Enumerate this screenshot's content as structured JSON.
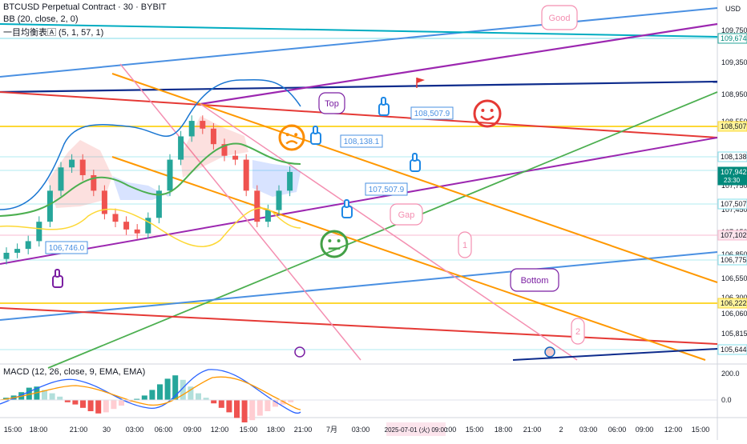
{
  "header": {
    "symbol": "BTCUSD Perpetual Contract · 30 · BYBIT",
    "bb": "BB (20, close, 2, 0)",
    "ichimoku": "一目均衡表🄰 (5, 1, 57, 1)",
    "macd": "MACD (12, 26, close, 9, EMA, EMA)",
    "currency": "USD"
  },
  "price_axis": {
    "ticks": [
      "109,750.0",
      "109,350.0",
      "108,950.0",
      "108,550.0",
      "107,750.0",
      "107,450.0",
      "107,150.0",
      "106,850.0",
      "106,550.0",
      "106,300.0",
      "106,060.0",
      "105,815.0",
      "105,575.0"
    ],
    "tags": [
      {
        "text": "109,674.0",
        "bg": "#ffffff",
        "fg": "#00897b",
        "border": "#26a69a"
      },
      {
        "text": "108,507.9",
        "bg": "#fff59d",
        "fg": "#131722",
        "border": "#fdd835"
      },
      {
        "text": "108,138.1",
        "bg": "#ffffff",
        "fg": "#131722",
        "border": "#80deea"
      },
      {
        "text": "107,942.0",
        "sub": "23:30",
        "bg": "#00897b",
        "fg": "#ffffff",
        "border": "#00897b"
      },
      {
        "text": "107,507.9",
        "bg": "#ffffff",
        "fg": "#131722",
        "border": "#80deea"
      },
      {
        "text": "107,102.7",
        "bg": "#fce4ec",
        "fg": "#131722",
        "border": "#f8bbd0"
      },
      {
        "text": "106,775.9",
        "bg": "#ffffff",
        "fg": "#131722",
        "border": "#80deea"
      },
      {
        "text": "106,222.2",
        "bg": "#fff59d",
        "fg": "#131722",
        "border": "#fdd835"
      },
      {
        "text": "105,644.3",
        "bg": "#ffffff",
        "fg": "#131722",
        "border": "#80deea"
      }
    ]
  },
  "macd_axis": {
    "ticks": [
      "200.0",
      "0.0"
    ]
  },
  "time_axis": {
    "labels": [
      "15:00",
      "18:00",
      "21:00",
      "30",
      "03:00",
      "06:00",
      "09:00",
      "12:00",
      "15:00",
      "18:00",
      "21:00",
      "7月",
      "03:00",
      "06",
      "09:00",
      "12:00",
      "15:00",
      "18:00",
      "21:00",
      "2",
      "03:00",
      "06:00",
      "09:00",
      "12:00",
      "15:00"
    ],
    "highlight": "2025-07-01 (火)  09:00"
  },
  "annotations": {
    "good": "Good",
    "top": "Top",
    "gap": "Gap",
    "bottom": "Bottom",
    "one": "1",
    "two": "2",
    "label_108507": "108,507.9",
    "label_108138": "108,138.1",
    "label_107507": "107,507.9",
    "label_106746": "106,746.0"
  },
  "colors": {
    "up": "#26a69a",
    "down": "#ef5350",
    "bb_basis": "#2962ff",
    "ichimoku_span": "#4caf50",
    "yellow_line": "#fdd835",
    "purple": "#9c27b0",
    "orange": "#ff9800",
    "navy": "#0d2b8c",
    "red": "#e53935",
    "light_blue": "#4a90e2",
    "pink": "#f48fb1",
    "teal": "#00acc1"
  },
  "chart_data": [
    {
      "type": "line",
      "title": "BTCUSD Perpetual Contract · 30 · BYBIT",
      "ylim": [
        105450,
        110050
      ],
      "x_labels": [
        "15:00",
        "18:00",
        "21:00",
        "30",
        "03:00",
        "06:00",
        "09:00",
        "12:00",
        "15:00",
        "18:00",
        "21:00"
      ],
      "candles_close_approx": [
        106900,
        106950,
        107050,
        107300,
        107700,
        108000,
        108100,
        107900,
        107700,
        107400,
        107300,
        107200,
        107150,
        107350,
        107700,
        108100,
        108400,
        108600,
        108500,
        108300,
        108150,
        108100,
        107700,
        107300,
        107450,
        107700,
        107942
      ],
      "series": [
        {
          "name": "BB (20, close, 2, 0)",
          "note": "upper/basis/lower bands"
        },
        {
          "name": "一目均衡表🄰 (5, 1, 57, 1)",
          "note": "cloud spans"
        }
      ]
    },
    {
      "type": "bar",
      "title": "MACD (12, 26, close, 9, EMA, EMA)",
      "ylim": [
        -160,
        260
      ],
      "ticks": [
        200,
        0
      ]
    }
  ]
}
